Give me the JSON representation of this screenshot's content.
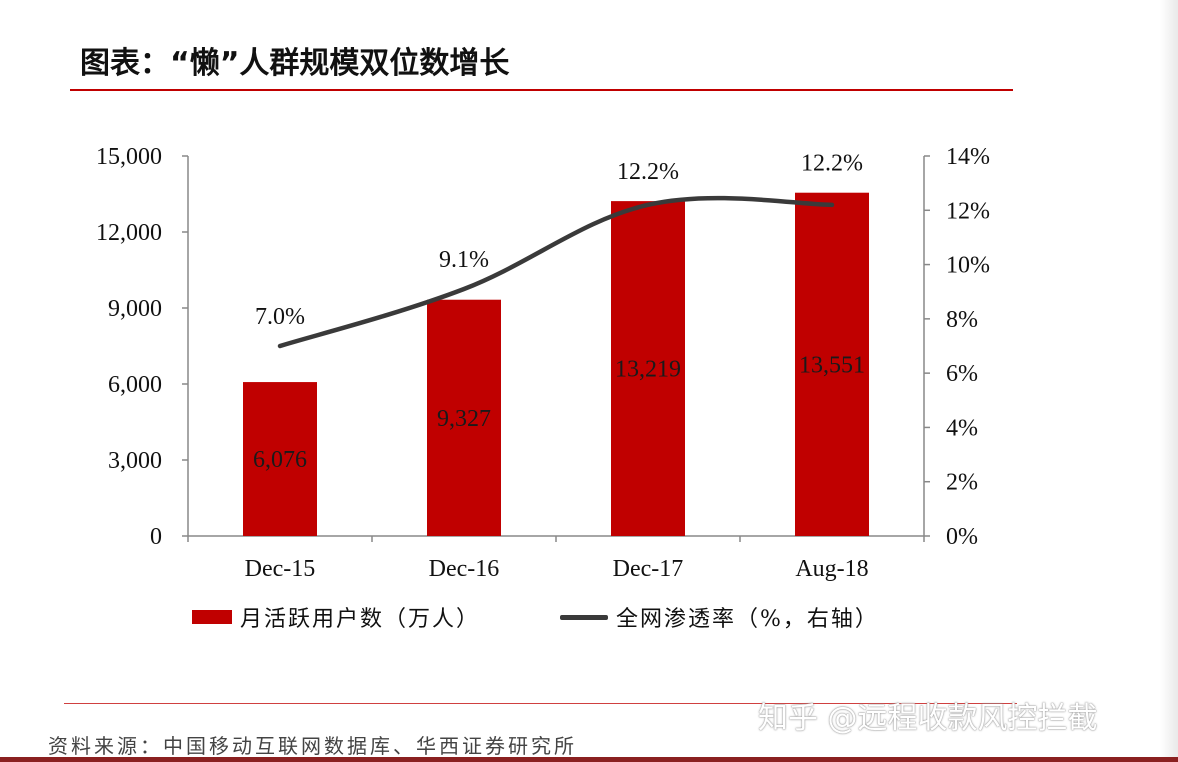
{
  "title": "图表：“懒”人群规模双位数增长",
  "source": "资料来源：中国移动互联网数据库、华西证券研究所",
  "watermark": "知乎 @远程收款风控拦截",
  "colors": {
    "bar": "#c00000",
    "line": "#3a3a3a",
    "rule": "#c00000"
  },
  "chart_data": {
    "type": "bar",
    "categories": [
      "Dec-15",
      "Dec-16",
      "Dec-17",
      "Aug-18"
    ],
    "series": [
      {
        "name": "月活跃用户数（万人）",
        "type": "bar",
        "axis": "left",
        "values": [
          6076,
          9327,
          13219,
          13551
        ],
        "labels": [
          "6,076",
          "9,327",
          "13,219",
          "13,551"
        ]
      },
      {
        "name": "全网渗透率（%，右轴）",
        "type": "line",
        "axis": "right",
        "values": [
          7.0,
          9.1,
          12.2,
          12.2
        ],
        "labels": [
          "7.0%",
          "9.1%",
          "12.2%",
          "12.2%"
        ]
      }
    ],
    "y_left": {
      "min": 0,
      "max": 15000,
      "ticks": [
        0,
        3000,
        6000,
        9000,
        12000,
        15000
      ],
      "tick_labels": [
        "0",
        "3,000",
        "6,000",
        "9,000",
        "12,000",
        "15,000"
      ]
    },
    "y_right": {
      "min": 0,
      "max": 14,
      "ticks": [
        0,
        2,
        4,
        6,
        8,
        10,
        12,
        14
      ],
      "tick_labels": [
        "0%",
        "2%",
        "4%",
        "6%",
        "8%",
        "10%",
        "12%",
        "14%"
      ]
    },
    "grid": false,
    "legend_position": "bottom"
  }
}
